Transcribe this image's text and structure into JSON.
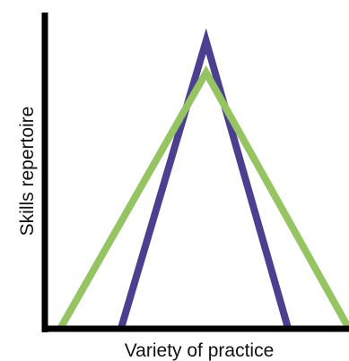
{
  "chart_data": {
    "type": "line",
    "title": "",
    "xlabel": "Variety of practice",
    "ylabel": "Skills repertoire",
    "xlim": [
      0,
      100
    ],
    "ylim": [
      0,
      100
    ],
    "grid": false,
    "legend": "none",
    "series": [
      {
        "color": "#4b3f8f",
        "points": [
          [
            25,
            0
          ],
          [
            53,
            91
          ],
          [
            80,
            0
          ]
        ]
      },
      {
        "color": "#96c463",
        "points": [
          [
            5,
            0
          ],
          [
            53,
            81
          ],
          [
            100,
            0
          ]
        ]
      }
    ]
  }
}
